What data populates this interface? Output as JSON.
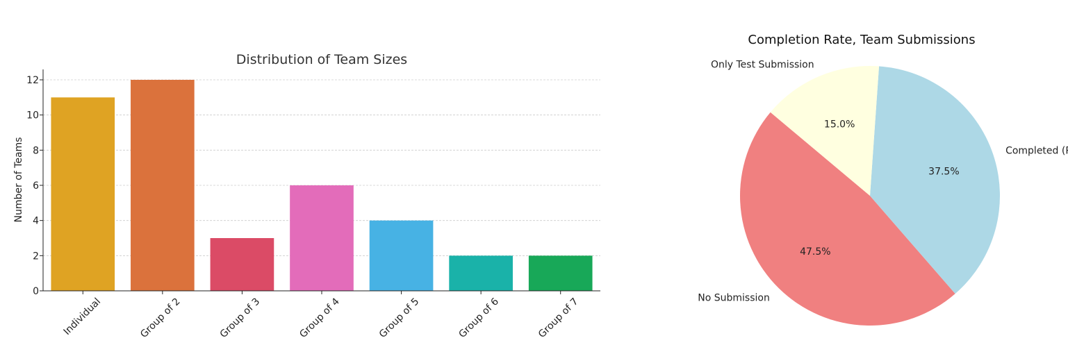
{
  "chart_data": [
    {
      "type": "bar",
      "title": "Distribution of Team Sizes",
      "xlabel": "",
      "ylabel": "Number of Teams",
      "categories": [
        "Individual",
        "Group of 2",
        "Group of 3",
        "Group of 4",
        "Group of 5",
        "Group of 6",
        "Group of 7"
      ],
      "values": [
        11,
        12,
        3,
        6,
        4,
        2,
        2
      ],
      "colors": [
        "#dfa323",
        "#db723c",
        "#db4b66",
        "#e36cba",
        "#47b2e4",
        "#1ab2a9",
        "#18a858"
      ],
      "ylim": [
        0,
        12.5
      ],
      "yticks": [
        "0",
        "2",
        "4",
        "6",
        "8",
        "10",
        "12"
      ],
      "grid": true
    },
    {
      "type": "pie",
      "title": "Completion Rate, Team Submissions",
      "labels": [
        "No Submission",
        "Completed (Paper + Test)",
        "Only Test Submission"
      ],
      "values": [
        47.5,
        37.5,
        15.0
      ],
      "pct_labels": [
        "47.5%",
        "37.5%",
        "15.0%"
      ],
      "colors": [
        "#f08080",
        "#add8e6",
        "#ffffe0"
      ],
      "start_angle_deg": 140,
      "direction": "counterclockwise"
    }
  ]
}
